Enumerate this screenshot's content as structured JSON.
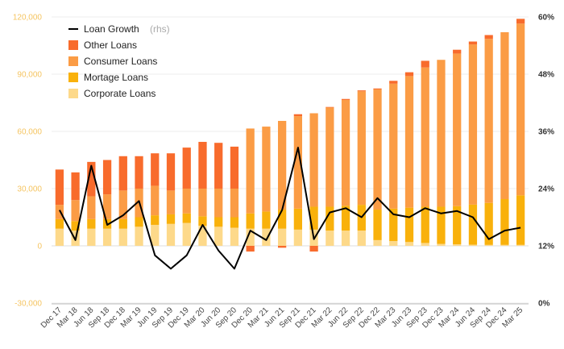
{
  "chart_data": {
    "type": "bar",
    "stacked": true,
    "categories": [
      "Dec 17",
      "Mar 18",
      "Jun 18",
      "Sep 18",
      "Dec 18",
      "Mar 19",
      "Jun 19",
      "Sep 19",
      "Dec 19",
      "Mar 20",
      "Jun 20",
      "Sep 20",
      "Dec 20",
      "Mar 21",
      "Jun 21",
      "Sep 21",
      "Dec 21",
      "Mar 22",
      "Jun 22",
      "Sep 22",
      "Dec 22",
      "Mar 23",
      "Jun 23",
      "Sep 23",
      "Dec 23",
      "Mar 24",
      "Jun 24",
      "Sep 24",
      "Dec 24",
      "Mar 25"
    ],
    "tick_labels": [
      "Dec 17",
      "Mar 18",
      "Jun 18",
      "Sep 18",
      "Dec 18",
      "Mar 19",
      "Jun 19",
      "Sep 19",
      "Dec 19",
      "Mar 20",
      "Jun 20",
      "Sep 20",
      "Dec 20",
      "Mar 21",
      "Jun 21",
      "Sep 21",
      "Dec 21",
      "Mar 22",
      "Jun 22",
      "Sep 22",
      "Dec 22",
      "Mar 23",
      "Jun 23",
      "Sep 23",
      "Dec 23",
      "Mar 24",
      "Jun 24",
      "Sep 24",
      "Dec 24",
      "Mar 25"
    ],
    "series": [
      {
        "name": "Corporate Loans",
        "color": "#fdd98a",
        "values": [
          9000,
          8000,
          9000,
          9000,
          9000,
          10000,
          11000,
          11500,
          12000,
          10500,
          10000,
          9500,
          9000,
          9000,
          9000,
          8500,
          8500,
          8000,
          8000,
          8000,
          3000,
          2500,
          2000,
          1500,
          1000,
          800,
          600,
          500,
          500,
          500
        ]
      },
      {
        "name": "Mortage Loans",
        "color": "#f9b10b",
        "values": [
          5000,
          5000,
          5000,
          5000,
          5000,
          5000,
          5000,
          5000,
          5000,
          5000,
          5000,
          5500,
          8000,
          9000,
          10000,
          11000,
          12000,
          12500,
          13000,
          13500,
          16000,
          17000,
          18000,
          19000,
          19500,
          20000,
          21000,
          22000,
          24000,
          26000
        ]
      },
      {
        "name": "Consumer Loans",
        "color": "#fb9c45",
        "values": [
          7500,
          11000,
          12000,
          13000,
          15000,
          15000,
          15500,
          12500,
          13000,
          14500,
          15000,
          15000,
          44500,
          44500,
          46500,
          48500,
          49000,
          52000,
          55500,
          59500,
          63000,
          65500,
          69000,
          73000,
          77000,
          80000,
          84000,
          86000,
          87500,
          90000
        ]
      },
      {
        "name": "Other Loans",
        "color": "#f86b2c",
        "values": [
          18500,
          14500,
          18000,
          18000,
          18000,
          17000,
          17000,
          19500,
          21500,
          24500,
          24000,
          22000,
          -3000,
          0,
          -1000,
          1000,
          -3000,
          300,
          500,
          500,
          500,
          1500,
          2000,
          3500,
          0,
          2000,
          1500,
          2000,
          0,
          2500
        ]
      }
    ],
    "line": {
      "name": "Loan Growth",
      "unit": "(rhs)",
      "color": "#000000",
      "values": [
        19.5,
        13.2,
        28.8,
        16.4,
        18.4,
        21.4,
        10.0,
        7.2,
        10.0,
        16.4,
        11.0,
        7.2,
        15.2,
        13.2,
        19.5,
        32.6,
        13.4,
        19.0,
        19.9,
        18.0,
        22.0,
        18.6,
        18.0,
        19.9,
        18.8,
        19.3,
        18.0,
        13.4,
        15.2,
        15.8
      ]
    },
    "y_left": {
      "ticks": [
        "120,000",
        "90,000",
        "60,000",
        "30,000",
        "0",
        "-30,000"
      ],
      "ylim": [
        -30000,
        120000
      ]
    },
    "y_right": {
      "ticks": [
        "60%",
        "48%",
        "36%",
        "24%",
        "12%",
        "0%"
      ],
      "ylim": [
        0,
        60
      ]
    },
    "legend": {
      "position": "top-left",
      "items": [
        "Loan Growth",
        "Other Loans",
        "Consumer Loans",
        "Mortage Loans",
        "Corporate Loans"
      ]
    },
    "grid": true,
    "colors": {
      "grid": "#eeeeee",
      "zero_line": "#dddddd",
      "left_axis_text": "#f5c460"
    }
  }
}
